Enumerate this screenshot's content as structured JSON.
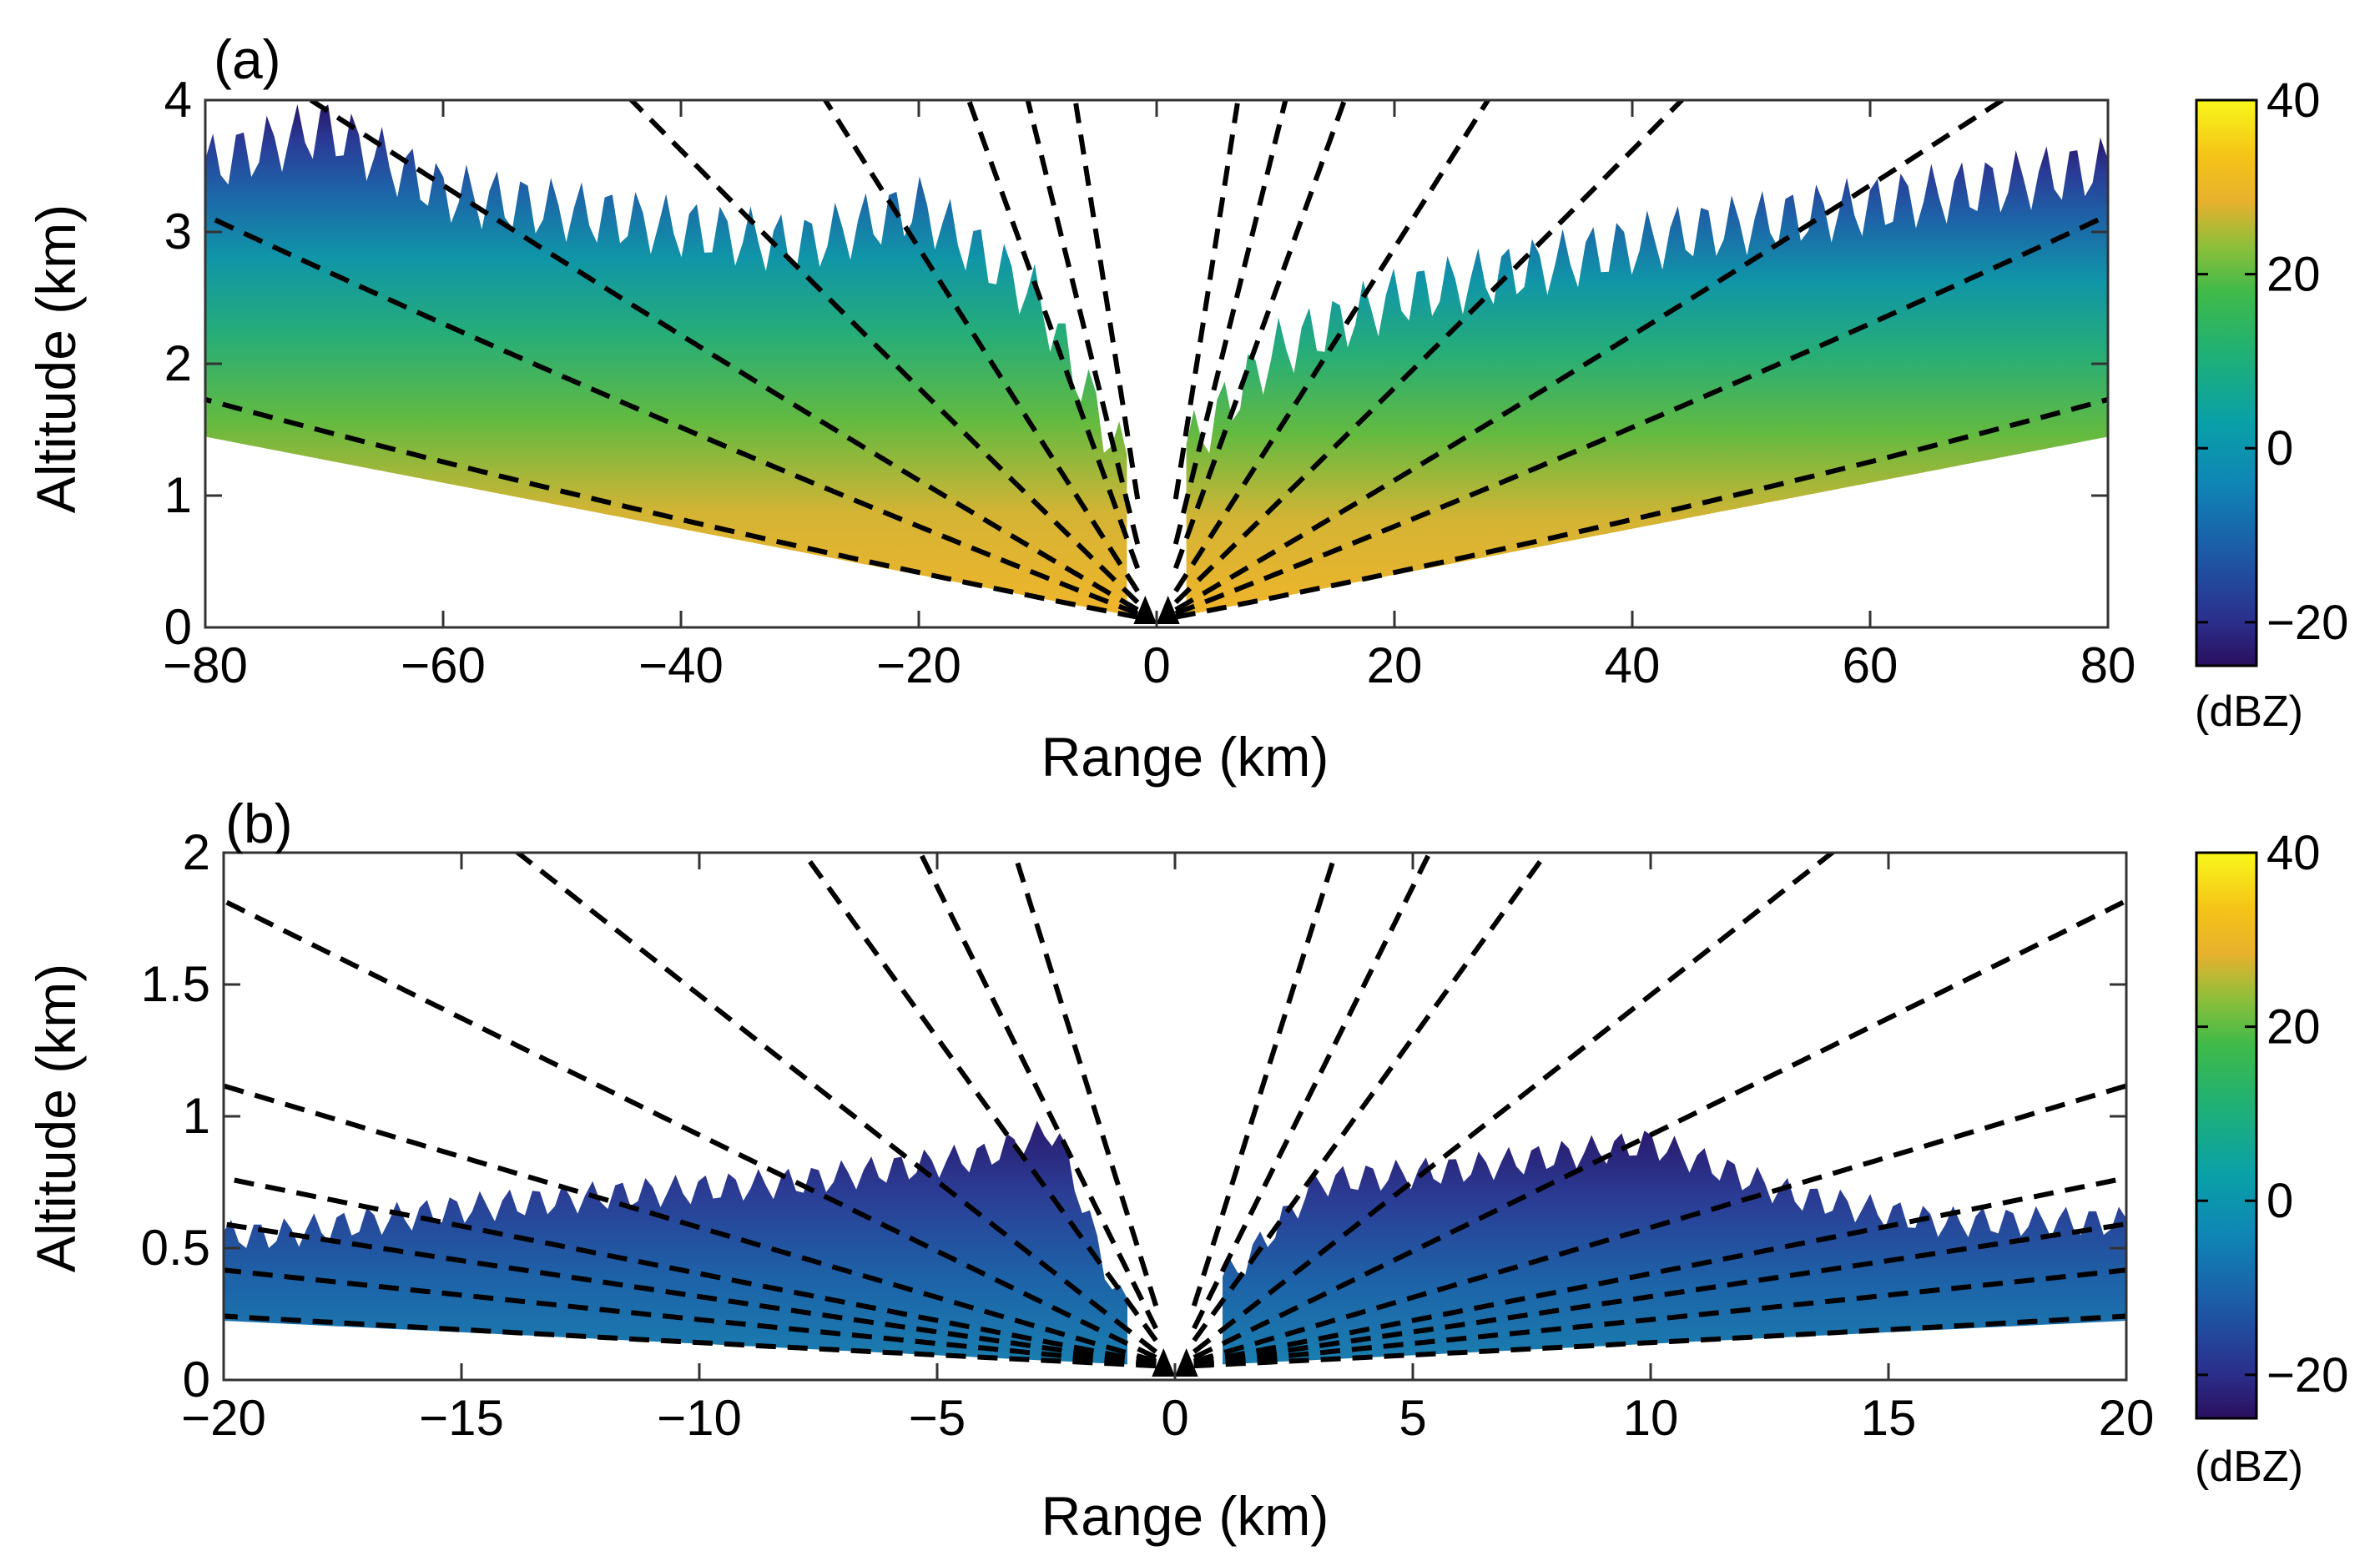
{
  "chart_data": [
    {
      "type": "heatmap",
      "panel_label": "(a)",
      "xlabel": "Range (km)",
      "ylabel": "Altitude (km)",
      "xlim": [
        -80,
        80
      ],
      "ylim": [
        0,
        4
      ],
      "xticks": [
        "−80",
        "−60",
        "−40",
        "−20",
        "0",
        "20",
        "40",
        "60",
        "80"
      ],
      "xtick_values": [
        -80,
        -60,
        -40,
        -20,
        0,
        20,
        40,
        60,
        80
      ],
      "yticks": [
        "0",
        "1",
        "2",
        "3",
        "4"
      ],
      "ytick_values": [
        0,
        1,
        2,
        3,
        4
      ],
      "colorbar": {
        "label": "(dBZ)",
        "range": [
          -25,
          40
        ],
        "ticks": [
          "40",
          "20",
          "0",
          "−20"
        ],
        "tick_values": [
          40,
          20,
          0,
          -20
        ]
      },
      "elevation_angles_deg": [
        1,
        2,
        3,
        5,
        8,
        14,
        20,
        30
      ],
      "echo_top_km": {
        "ranges": [
          -80,
          -70,
          -60,
          -45,
          -30,
          -20,
          -10,
          -3,
          3,
          10,
          20,
          30,
          45,
          60,
          80
        ],
        "tops": [
          3.5,
          3.8,
          3.3,
          3.1,
          2.9,
          3.2,
          2.5,
          1.3,
          1.4,
          2.1,
          2.5,
          2.7,
          3.0,
          3.2,
          3.5
        ]
      }
    },
    {
      "type": "heatmap",
      "panel_label": "(b)",
      "xlabel": "Range (km)",
      "ylabel": "Altitude (km)",
      "xlim": [
        -20,
        20
      ],
      "ylim": [
        0,
        2
      ],
      "xticks": [
        "−20",
        "−15",
        "−10",
        "−5",
        "0",
        "5",
        "10",
        "15",
        "20"
      ],
      "xtick_values": [
        -20,
        -15,
        -10,
        -5,
        0,
        5,
        10,
        15,
        20
      ],
      "yticks": [
        "0",
        "0.5",
        "1",
        "1.5",
        "2"
      ],
      "ytick_values": [
        0,
        0.5,
        1,
        1.5,
        2
      ],
      "colorbar": {
        "label": "(dBZ)",
        "range": [
          -25,
          40
        ],
        "ticks": [
          "40",
          "20",
          "0",
          "−20"
        ],
        "tick_values": [
          40,
          20,
          0,
          -20
        ]
      },
      "elevation_angles_deg": [
        0.5,
        1,
        1.5,
        2,
        3,
        5,
        8,
        14,
        20,
        30
      ],
      "echo_top_km": {
        "ranges": [
          -19,
          -15,
          -12,
          -8,
          -4,
          -2.5,
          -1.2,
          1.2,
          3,
          6,
          10,
          13,
          16
        ],
        "tops": [
          0.55,
          0.65,
          0.7,
          0.75,
          0.85,
          0.95,
          0.3,
          0.4,
          0.75,
          0.8,
          0.9,
          0.7,
          0.6
        ]
      }
    }
  ]
}
